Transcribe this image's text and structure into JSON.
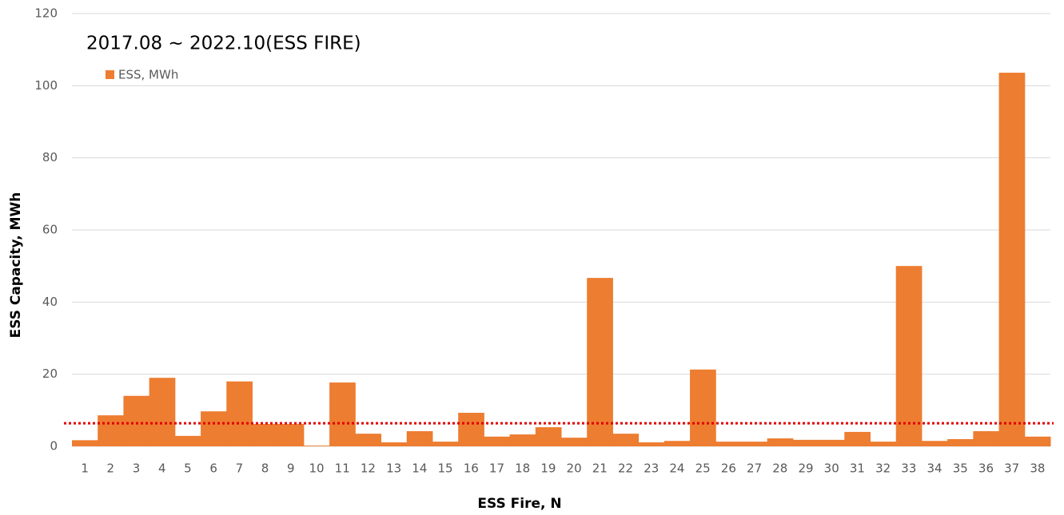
{
  "chart_data": {
    "type": "bar",
    "title": "2017.08 ~ 2022.10(ESS FIRE)",
    "xlabel": "ESS Fire, N",
    "ylabel": "ESS Capacity, MWh",
    "categories": [
      "1",
      "2",
      "3",
      "4",
      "5",
      "6",
      "7",
      "8",
      "9",
      "10",
      "11",
      "12",
      "13",
      "14",
      "15",
      "16",
      "17",
      "18",
      "19",
      "20",
      "21",
      "22",
      "23",
      "24",
      "25",
      "26",
      "27",
      "28",
      "29",
      "30",
      "31",
      "32",
      "33",
      "34",
      "35",
      "36",
      "37",
      "38"
    ],
    "series": [
      {
        "name": "ESS, MWh",
        "color": "#ed7d31",
        "values": [
          1.7,
          8.6,
          14,
          19,
          2.9,
          9.7,
          18,
          6.2,
          6.2,
          0.2,
          17.7,
          3.5,
          1.1,
          4.2,
          1.3,
          9.3,
          2.7,
          3.3,
          5.3,
          2.4,
          46.7,
          3.5,
          1.1,
          1.5,
          21.3,
          1.3,
          1.3,
          2.2,
          1.8,
          1.8,
          4,
          1.3,
          50,
          1.5,
          2,
          4.2,
          103.6,
          2.7
        ]
      }
    ],
    "reference_line": {
      "value": 6.4,
      "color": "#e00000"
    },
    "ylim": [
      0,
      120
    ],
    "yticks": [
      0,
      20,
      40,
      60,
      80,
      100,
      120
    ],
    "grid": true,
    "legend": "upper left"
  }
}
